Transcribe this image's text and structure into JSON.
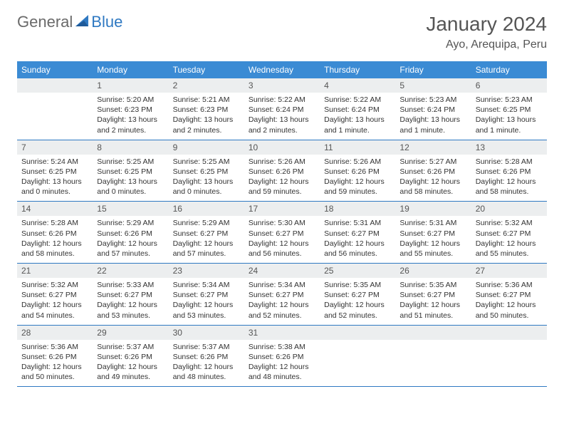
{
  "brand": {
    "text1": "General",
    "text2": "Blue"
  },
  "title": "January 2024",
  "location": "Ayo, Arequipa, Peru",
  "day_names": [
    "Sunday",
    "Monday",
    "Tuesday",
    "Wednesday",
    "Thursday",
    "Friday",
    "Saturday"
  ],
  "colors": {
    "header_bg": "#3b8bd4",
    "header_fg": "#ffffff",
    "daynum_bg": "#eceeef",
    "rule": "#2f79c2",
    "logo_gray": "#6a6a6a",
    "logo_blue": "#2f79c2"
  },
  "start_offset": 1,
  "days": [
    {
      "n": 1,
      "sunrise": "5:20 AM",
      "sunset": "6:23 PM",
      "daylight": "13 hours and 2 minutes."
    },
    {
      "n": 2,
      "sunrise": "5:21 AM",
      "sunset": "6:23 PM",
      "daylight": "13 hours and 2 minutes."
    },
    {
      "n": 3,
      "sunrise": "5:22 AM",
      "sunset": "6:24 PM",
      "daylight": "13 hours and 2 minutes."
    },
    {
      "n": 4,
      "sunrise": "5:22 AM",
      "sunset": "6:24 PM",
      "daylight": "13 hours and 1 minute."
    },
    {
      "n": 5,
      "sunrise": "5:23 AM",
      "sunset": "6:24 PM",
      "daylight": "13 hours and 1 minute."
    },
    {
      "n": 6,
      "sunrise": "5:23 AM",
      "sunset": "6:25 PM",
      "daylight": "13 hours and 1 minute."
    },
    {
      "n": 7,
      "sunrise": "5:24 AM",
      "sunset": "6:25 PM",
      "daylight": "13 hours and 0 minutes."
    },
    {
      "n": 8,
      "sunrise": "5:25 AM",
      "sunset": "6:25 PM",
      "daylight": "13 hours and 0 minutes."
    },
    {
      "n": 9,
      "sunrise": "5:25 AM",
      "sunset": "6:25 PM",
      "daylight": "13 hours and 0 minutes."
    },
    {
      "n": 10,
      "sunrise": "5:26 AM",
      "sunset": "6:26 PM",
      "daylight": "12 hours and 59 minutes."
    },
    {
      "n": 11,
      "sunrise": "5:26 AM",
      "sunset": "6:26 PM",
      "daylight": "12 hours and 59 minutes."
    },
    {
      "n": 12,
      "sunrise": "5:27 AM",
      "sunset": "6:26 PM",
      "daylight": "12 hours and 58 minutes."
    },
    {
      "n": 13,
      "sunrise": "5:28 AM",
      "sunset": "6:26 PM",
      "daylight": "12 hours and 58 minutes."
    },
    {
      "n": 14,
      "sunrise": "5:28 AM",
      "sunset": "6:26 PM",
      "daylight": "12 hours and 58 minutes."
    },
    {
      "n": 15,
      "sunrise": "5:29 AM",
      "sunset": "6:26 PM",
      "daylight": "12 hours and 57 minutes."
    },
    {
      "n": 16,
      "sunrise": "5:29 AM",
      "sunset": "6:27 PM",
      "daylight": "12 hours and 57 minutes."
    },
    {
      "n": 17,
      "sunrise": "5:30 AM",
      "sunset": "6:27 PM",
      "daylight": "12 hours and 56 minutes."
    },
    {
      "n": 18,
      "sunrise": "5:31 AM",
      "sunset": "6:27 PM",
      "daylight": "12 hours and 56 minutes."
    },
    {
      "n": 19,
      "sunrise": "5:31 AM",
      "sunset": "6:27 PM",
      "daylight": "12 hours and 55 minutes."
    },
    {
      "n": 20,
      "sunrise": "5:32 AM",
      "sunset": "6:27 PM",
      "daylight": "12 hours and 55 minutes."
    },
    {
      "n": 21,
      "sunrise": "5:32 AM",
      "sunset": "6:27 PM",
      "daylight": "12 hours and 54 minutes."
    },
    {
      "n": 22,
      "sunrise": "5:33 AM",
      "sunset": "6:27 PM",
      "daylight": "12 hours and 53 minutes."
    },
    {
      "n": 23,
      "sunrise": "5:34 AM",
      "sunset": "6:27 PM",
      "daylight": "12 hours and 53 minutes."
    },
    {
      "n": 24,
      "sunrise": "5:34 AM",
      "sunset": "6:27 PM",
      "daylight": "12 hours and 52 minutes."
    },
    {
      "n": 25,
      "sunrise": "5:35 AM",
      "sunset": "6:27 PM",
      "daylight": "12 hours and 52 minutes."
    },
    {
      "n": 26,
      "sunrise": "5:35 AM",
      "sunset": "6:27 PM",
      "daylight": "12 hours and 51 minutes."
    },
    {
      "n": 27,
      "sunrise": "5:36 AM",
      "sunset": "6:27 PM",
      "daylight": "12 hours and 50 minutes."
    },
    {
      "n": 28,
      "sunrise": "5:36 AM",
      "sunset": "6:26 PM",
      "daylight": "12 hours and 50 minutes."
    },
    {
      "n": 29,
      "sunrise": "5:37 AM",
      "sunset": "6:26 PM",
      "daylight": "12 hours and 49 minutes."
    },
    {
      "n": 30,
      "sunrise": "5:37 AM",
      "sunset": "6:26 PM",
      "daylight": "12 hours and 48 minutes."
    },
    {
      "n": 31,
      "sunrise": "5:38 AM",
      "sunset": "6:26 PM",
      "daylight": "12 hours and 48 minutes."
    }
  ],
  "labels": {
    "sunrise": "Sunrise:",
    "sunset": "Sunset:",
    "daylight": "Daylight:"
  }
}
